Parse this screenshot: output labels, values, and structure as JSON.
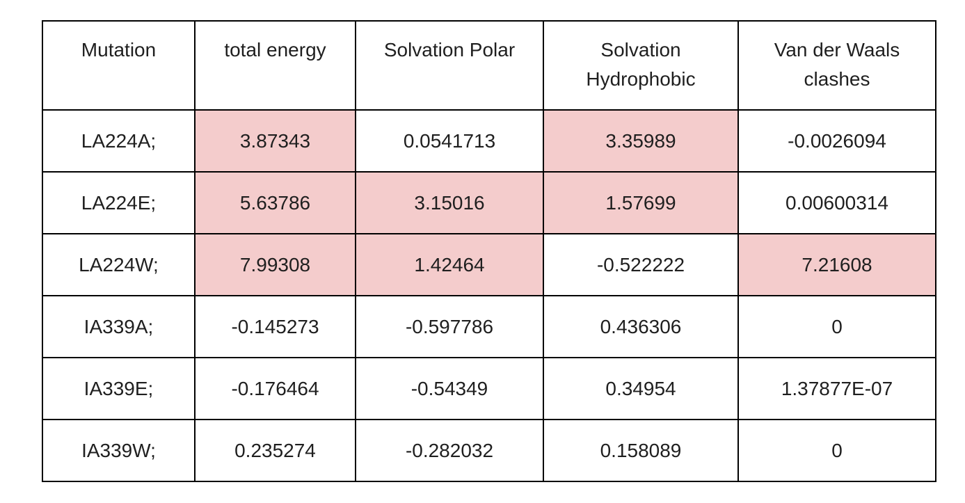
{
  "table": {
    "headers": [
      "Mutation",
      "total energy",
      "Solvation Polar",
      "Solvation Hydrophobic",
      "Van der Waals clashes"
    ],
    "highlight_color": "#f4cccc",
    "rows": [
      {
        "cells": [
          "LA224A;",
          "3.87343",
          "0.0541713",
          "3.35989",
          "-0.0026094"
        ],
        "highlighted": [
          false,
          true,
          false,
          true,
          false
        ]
      },
      {
        "cells": [
          "LA224E;",
          "5.63786",
          "3.15016",
          "1.57699",
          "0.00600314"
        ],
        "highlighted": [
          false,
          true,
          true,
          true,
          false
        ]
      },
      {
        "cells": [
          "LA224W;",
          "7.99308",
          "1.42464",
          "-0.522222",
          "7.21608"
        ],
        "highlighted": [
          false,
          true,
          true,
          false,
          true
        ]
      },
      {
        "cells": [
          "IA339A;",
          "-0.145273",
          "-0.597786",
          "0.436306",
          "0"
        ],
        "highlighted": [
          false,
          false,
          false,
          false,
          false
        ]
      },
      {
        "cells": [
          "IA339E;",
          "-0.176464",
          "-0.54349",
          "0.34954",
          "1.37877E-07"
        ],
        "highlighted": [
          false,
          false,
          false,
          false,
          false
        ]
      },
      {
        "cells": [
          "IA339W;",
          "0.235274",
          "-0.282032",
          "0.158089",
          "0"
        ],
        "highlighted": [
          false,
          false,
          false,
          false,
          false
        ]
      }
    ]
  }
}
